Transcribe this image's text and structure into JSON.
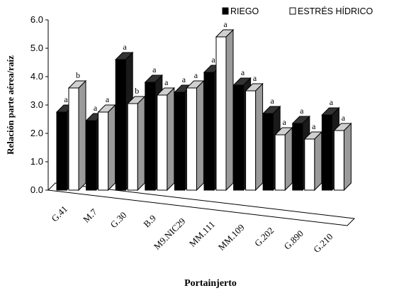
{
  "chart_data": {
    "type": "bar",
    "title": "",
    "xlabel": "Portainjerto",
    "ylabel": "Relación parte aérea/raíz",
    "ylim": [
      0,
      6
    ],
    "yticks": [
      "0.0",
      "1.0",
      "2.0",
      "3.0",
      "4.0",
      "5.0",
      "6.0"
    ],
    "grid": false,
    "legend_position": "top-right",
    "categories": [
      "G.41",
      "M.7",
      "G.30",
      "B.9",
      "M9.NIC29",
      "MM.111",
      "MM.109",
      "G.202",
      "G.890",
      "G.210"
    ],
    "series": [
      {
        "name": "RIEGO",
        "color": "#000000",
        "values": [
          2.75,
          2.45,
          4.6,
          3.8,
          3.45,
          4.15,
          3.7,
          2.7,
          2.35,
          2.65
        ],
        "letters": [
          "a",
          "a",
          "a",
          "a",
          "a",
          "a",
          "a",
          "a",
          "a",
          "a"
        ]
      },
      {
        "name": "ESTRÉS HÍDRICO",
        "color": "#ffffff",
        "values": [
          3.6,
          2.75,
          3.05,
          3.35,
          3.6,
          5.4,
          3.5,
          1.95,
          1.8,
          2.1
        ],
        "letters": [
          "b",
          "a",
          "b",
          "a",
          "a",
          "a",
          "a",
          "a",
          "a",
          "a"
        ]
      }
    ]
  }
}
